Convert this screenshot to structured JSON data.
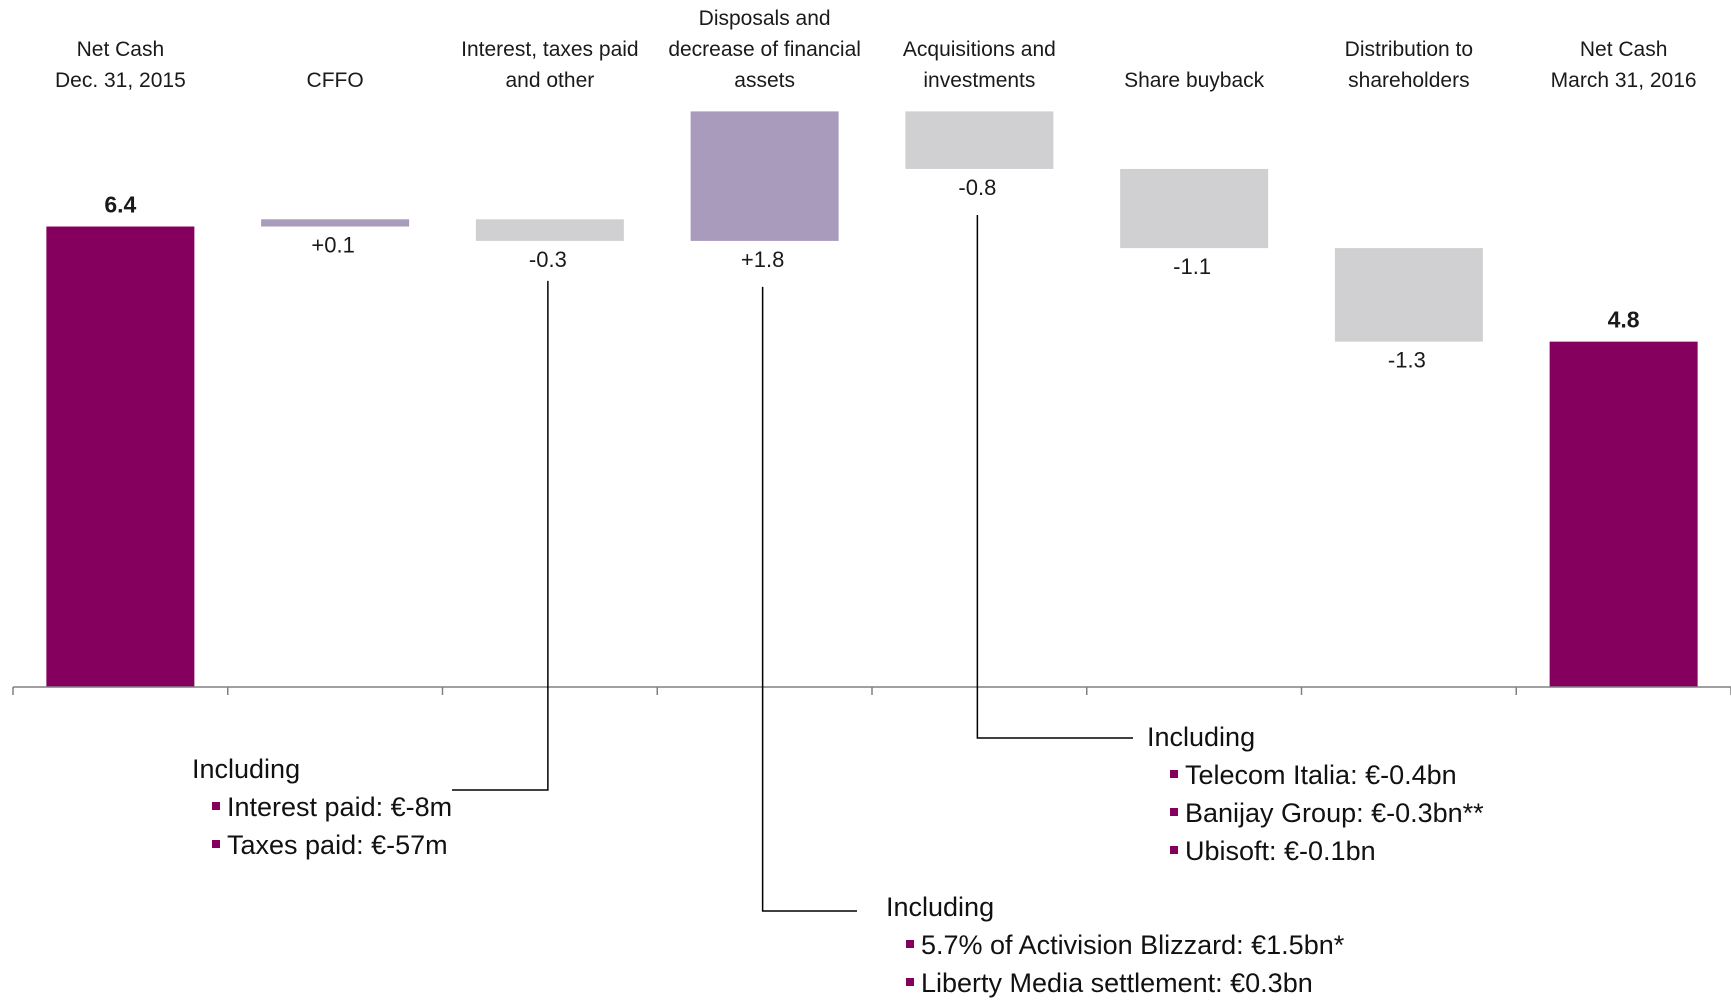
{
  "colors": {
    "total": "#85005e",
    "positive": "#a89bbc",
    "negative": "#d0d0d2",
    "axis": "#808080",
    "bullet": "#85005e"
  },
  "chart_data": {
    "type": "bar",
    "subtype": "waterfall",
    "title": "",
    "xlabel": "",
    "ylabel": "",
    "categories": [
      [
        "Net Cash",
        "Dec. 31, 2015"
      ],
      [
        "CFFO"
      ],
      [
        "Interest, taxes paid",
        "and other"
      ],
      [
        "Disposals and",
        "decrease of financial",
        "assets"
      ],
      [
        "Acquisitions  and",
        "investments"
      ],
      [
        "Share buyback"
      ],
      [
        "Distribution to",
        "shareholders"
      ],
      [
        "Net Cash",
        "March 31, 2016"
      ]
    ],
    "steps": [
      {
        "kind": "total",
        "value": 6.4,
        "label": "6.4"
      },
      {
        "kind": "delta",
        "value": 0.1,
        "label": "+0.1"
      },
      {
        "kind": "delta",
        "value": -0.3,
        "label": "-0.3"
      },
      {
        "kind": "delta",
        "value": 1.8,
        "label": "+1.8"
      },
      {
        "kind": "delta",
        "value": -0.8,
        "label": "-0.8"
      },
      {
        "kind": "delta",
        "value": -1.1,
        "label": "-1.1"
      },
      {
        "kind": "delta",
        "value": -1.3,
        "label": "-1.3"
      },
      {
        "kind": "total",
        "value": 4.8,
        "label": "4.8"
      }
    ],
    "ylim": [
      0,
      8.2
    ],
    "grid": false,
    "legend": "none"
  },
  "annotations": {
    "interest": {
      "heading": "Including",
      "items": [
        "Interest paid: €-8m",
        "Taxes paid: €-57m"
      ]
    },
    "disposals": {
      "heading": "Including",
      "items": [
        "5.7% of Activision Blizzard: €1.5bn*",
        "Liberty Media settlement: €0.3bn"
      ]
    },
    "acquisitions": {
      "heading": "Including",
      "items": [
        "Telecom Italia: €-0.4bn",
        "Banijay Group: €-0.3bn**",
        "Ubisoft: €-0.1bn"
      ]
    }
  }
}
